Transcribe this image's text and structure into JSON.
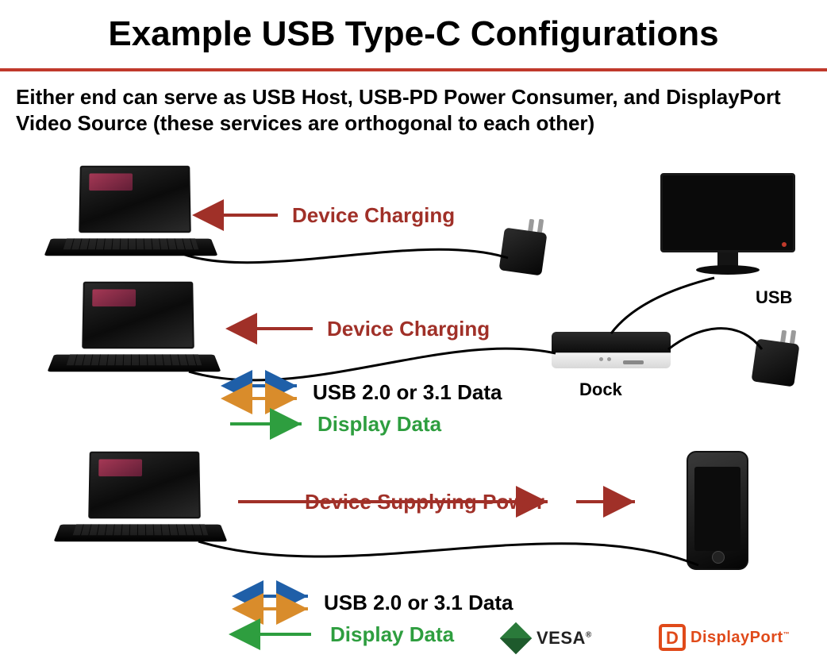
{
  "title": {
    "text": "Example USB Type-C Configurations",
    "fontsize": 44,
    "color": "#000000"
  },
  "divider_color": "#c0392b",
  "subtitle": {
    "text": "Either end can serve as USB Host, USB-PD Power Consumer, and DisplayPort Video Source (these services are orthogonal to each other)",
    "fontsize": 26,
    "color": "#000000"
  },
  "colors": {
    "charging_red": "#a03028",
    "usb_blue": "#1f5fa8",
    "usb_orange": "#d98c2b",
    "display_green": "#2e9e3f",
    "cable_black": "#000000",
    "dp_orange": "#e04a1a",
    "vesa_green": "#2a7a3a",
    "background": "#ffffff"
  },
  "labels": {
    "row1_charging": "Device Charging",
    "row2_charging": "Device Charging",
    "row2_usb": "USB 2.0 or 3.1 Data",
    "row2_display": "Display Data",
    "row3_power": "Device Supplying Power",
    "row3_usb": "USB 2.0 or 3.1 Data",
    "row3_display": "Display Data",
    "usb_port": "USB",
    "dock": "Dock"
  },
  "label_fontsize": 26,
  "small_label_fontsize": 22,
  "logos": {
    "vesa": "VESA",
    "displayport": "DisplayPort"
  },
  "diagram": {
    "type": "infographic",
    "rows": [
      {
        "left_device": "laptop",
        "right_device": "wall-charger",
        "arrows": [
          {
            "label_key": "row1_charging",
            "direction": "left",
            "color_key": "charging_red"
          }
        ]
      },
      {
        "left_device": "laptop",
        "right_device": "dock",
        "extra_devices": [
          "monitor",
          "wall-charger"
        ],
        "arrows": [
          {
            "label_key": "row2_charging",
            "direction": "left",
            "color_key": "charging_red"
          },
          {
            "label_key": "row2_usb",
            "direction": "both",
            "color_keys": [
              "usb_blue",
              "usb_orange"
            ]
          },
          {
            "label_key": "row2_display",
            "direction": "right",
            "color_key": "display_green"
          }
        ]
      },
      {
        "left_device": "laptop",
        "right_device": "phone",
        "arrows": [
          {
            "label_key": "row3_power",
            "direction": "right",
            "color_key": "charging_red"
          },
          {
            "label_key": "row3_usb",
            "direction": "both",
            "color_keys": [
              "usb_blue",
              "usb_orange"
            ]
          },
          {
            "label_key": "row3_display",
            "direction": "left",
            "color_key": "display_green"
          }
        ]
      }
    ],
    "arrow_stroke_width": 4,
    "cable_stroke_width": 3
  }
}
